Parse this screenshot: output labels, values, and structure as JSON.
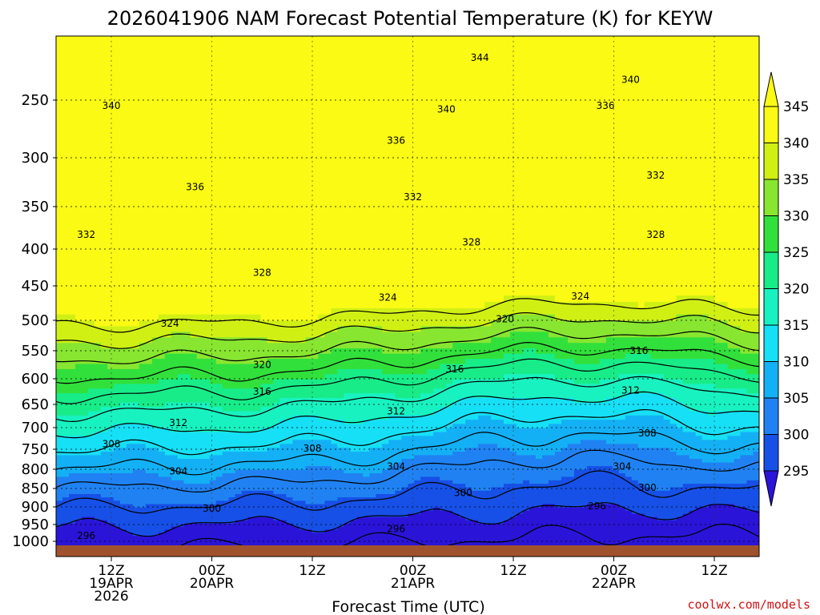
{
  "chart_data": {
    "type": "heatmap",
    "title": "2026041906 NAM Forecast Potential Temperature (K) for KEYW",
    "xlabel": "Forecast Time (UTC)",
    "ylabel": "",
    "y_ticks": [
      250,
      300,
      350,
      400,
      450,
      500,
      550,
      600,
      650,
      700,
      750,
      800,
      850,
      900,
      950,
      1000
    ],
    "x_ticks": [
      {
        "hour": 6,
        "lines": [
          "12Z",
          "19APR",
          "2026"
        ]
      },
      {
        "hour": 18,
        "lines": [
          "00Z",
          "20APR"
        ]
      },
      {
        "hour": 30,
        "lines": [
          "12Z"
        ]
      },
      {
        "hour": 42,
        "lines": [
          "00Z",
          "21APR"
        ]
      },
      {
        "hour": 54,
        "lines": [
          "12Z"
        ]
      },
      {
        "hour": 66,
        "lines": [
          "00Z",
          "22APR"
        ]
      },
      {
        "hour": 78,
        "lines": [
          "12Z"
        ]
      }
    ],
    "colorbar": {
      "levels": [
        295,
        300,
        305,
        310,
        315,
        320,
        325,
        330,
        335,
        340,
        345
      ],
      "colors": [
        "#2a14d8",
        "#1650e6",
        "#2082f2",
        "#14b0f5",
        "#16e0f5",
        "#18f2c0",
        "#18ec88",
        "#32e03c",
        "#88e630",
        "#d0f014",
        "#fafa14"
      ],
      "under": "#2a14d8",
      "over": "#fafa14"
    },
    "contours": [
      296,
      300,
      304,
      308,
      312,
      316,
      320,
      324,
      328,
      332,
      336,
      340,
      344
    ],
    "contour_labels": [
      {
        "value": "296",
        "hour": 3,
        "p": 983
      },
      {
        "value": "300",
        "hour": 18,
        "p": 905
      },
      {
        "value": "304",
        "hour": 14,
        "p": 805
      },
      {
        "value": "308",
        "hour": 6,
        "p": 738
      },
      {
        "value": "312",
        "hour": 14,
        "p": 690
      },
      {
        "value": "316",
        "hour": 24,
        "p": 625
      },
      {
        "value": "320",
        "hour": 24,
        "p": 575
      },
      {
        "value": "324",
        "hour": 13,
        "p": 505
      },
      {
        "value": "328",
        "hour": 24,
        "p": 432
      },
      {
        "value": "332",
        "hour": 3,
        "p": 383
      },
      {
        "value": "336",
        "hour": 16,
        "p": 330
      },
      {
        "value": "340",
        "hour": 6,
        "p": 255
      },
      {
        "value": "296",
        "hour": 40,
        "p": 963
      },
      {
        "value": "300",
        "hour": 48,
        "p": 862
      },
      {
        "value": "304",
        "hour": 40,
        "p": 793
      },
      {
        "value": "308",
        "hour": 30,
        "p": 748
      },
      {
        "value": "312",
        "hour": 40,
        "p": 665
      },
      {
        "value": "316",
        "hour": 47,
        "p": 583
      },
      {
        "value": "320",
        "hour": 53,
        "p": 498
      },
      {
        "value": "324",
        "hour": 39,
        "p": 467
      },
      {
        "value": "328",
        "hour": 49,
        "p": 392
      },
      {
        "value": "332",
        "hour": 42,
        "p": 340
      },
      {
        "value": "336",
        "hour": 40,
        "p": 285
      },
      {
        "value": "340",
        "hour": 46,
        "p": 258
      },
      {
        "value": "344",
        "hour": 50,
        "p": 217
      },
      {
        "value": "296",
        "hour": 64,
        "p": 898
      },
      {
        "value": "300",
        "hour": 70,
        "p": 848
      },
      {
        "value": "304",
        "hour": 67,
        "p": 793
      },
      {
        "value": "308",
        "hour": 70,
        "p": 713
      },
      {
        "value": "312",
        "hour": 68,
        "p": 623
      },
      {
        "value": "316",
        "hour": 69,
        "p": 550
      },
      {
        "value": "324",
        "hour": 62,
        "p": 465
      },
      {
        "value": "328",
        "hour": 71,
        "p": 383
      },
      {
        "value": "332",
        "hour": 71,
        "p": 318
      },
      {
        "value": "336",
        "hour": 65,
        "p": 255
      },
      {
        "value": "340",
        "hour": 68,
        "p": 234
      }
    ]
  },
  "credit": "coolwx.com/models"
}
